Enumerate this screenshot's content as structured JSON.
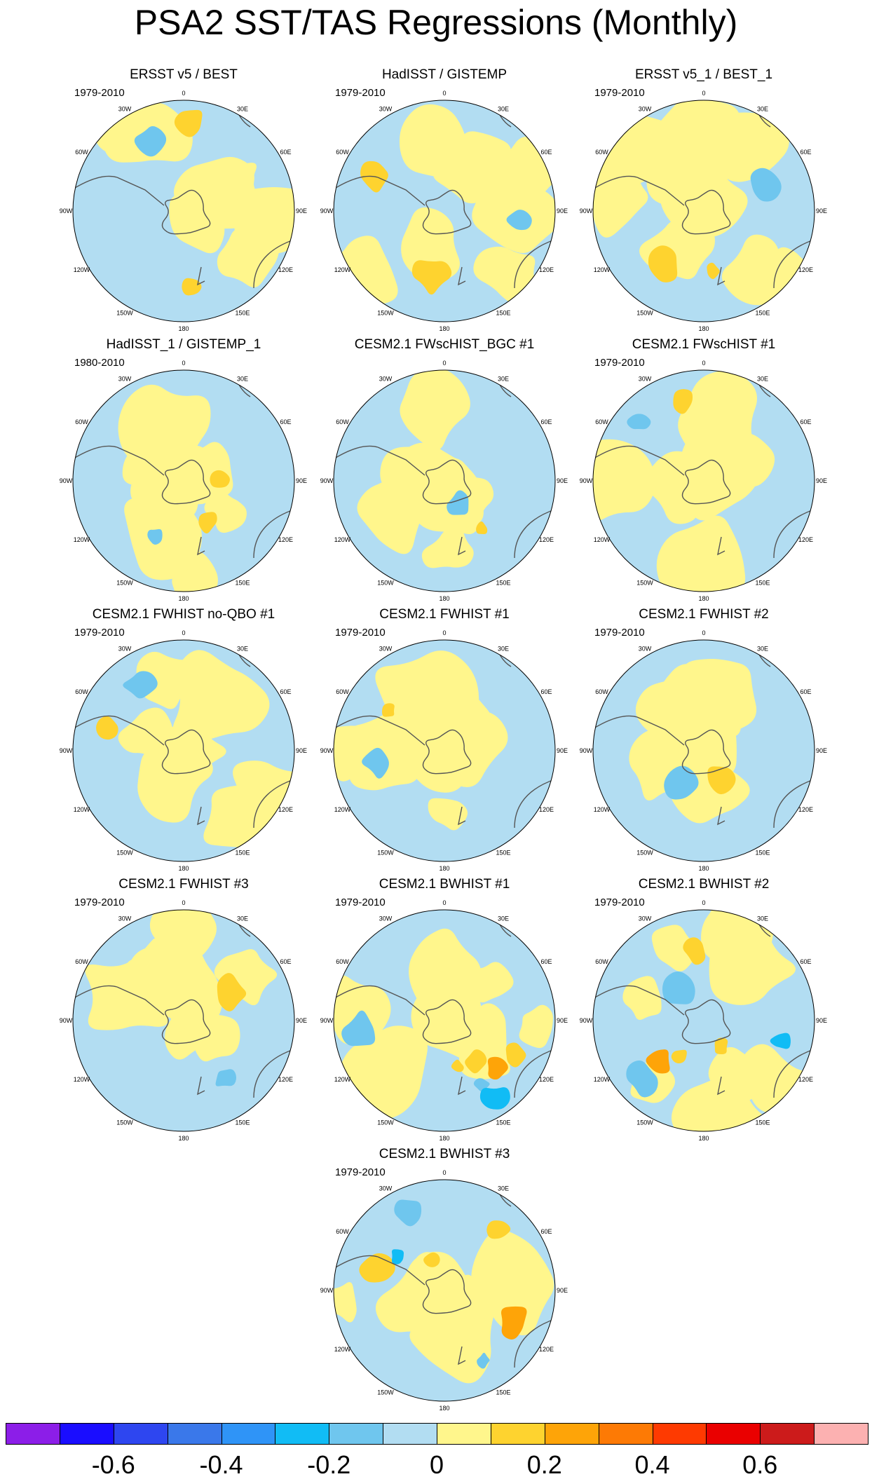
{
  "title": "PSA2 SST/TAS Regressions (Monthly)",
  "chart_data": {
    "type": "polar-contour-maps",
    "projection": "south polar stereographic",
    "longitude_labels": [
      "0",
      "30E",
      "60E",
      "90E",
      "120E",
      "150E",
      "180",
      "150W",
      "120W",
      "90W",
      "60W",
      "30W"
    ],
    "panels": [
      {
        "title": "ERSST v5 / BEST",
        "period": "1979-2010",
        "palette": "obs"
      },
      {
        "title": "HadISST / GISTEMP",
        "period": "1979-2010",
        "palette": "obs"
      },
      {
        "title": "ERSST v5_1 / BEST_1",
        "period": "1979-2010",
        "palette": "obs"
      },
      {
        "title": "HadISST_1 / GISTEMP_1",
        "period": "1980-2010",
        "palette": "obs"
      },
      {
        "title": "CESM2.1 FWscHIST_BGC #1",
        "period": "",
        "palette": "weak"
      },
      {
        "title": "CESM2.1 FWscHIST #1",
        "period": "1979-2010",
        "palette": "weak"
      },
      {
        "title": "CESM2.1 FWHIST no-QBO #1",
        "period": "1979-2010",
        "palette": "weak"
      },
      {
        "title": "CESM2.1 FWHIST #1",
        "period": "1979-2010",
        "palette": "weak"
      },
      {
        "title": "CESM2.1 FWHIST #2",
        "period": "1979-2010",
        "palette": "weak"
      },
      {
        "title": "CESM2.1 FWHIST #3",
        "period": "1979-2010",
        "palette": "weak"
      },
      {
        "title": "CESM2.1 BWHIST #1",
        "period": "1979-2010",
        "palette": "strong"
      },
      {
        "title": "CESM2.1 BWHIST #2",
        "period": "1979-2010",
        "palette": "strong"
      },
      {
        "title": "CESM2.1 BWHIST #3",
        "period": "1979-2010",
        "palette": "strong"
      }
    ],
    "colorbar": {
      "colors": [
        "#8c1ee8",
        "#1a0dff",
        "#2e46f0",
        "#3a78ea",
        "#2f94f7",
        "#11bcf5",
        "#6fc6ee",
        "#b2ddf2",
        "#fff68c",
        "#fed32f",
        "#fea408",
        "#fd7a05",
        "#fe3a01",
        "#ea0000",
        "#cc1b1b",
        "#fcb1b1"
      ],
      "tick_values": [
        -0.6,
        -0.4,
        -0.2,
        0,
        0.2,
        0.4,
        0.6
      ],
      "tick_labels": [
        "-0.6",
        "-0.4",
        "-0.2",
        "0",
        "0.2",
        "0.4",
        "0.6"
      ]
    }
  }
}
